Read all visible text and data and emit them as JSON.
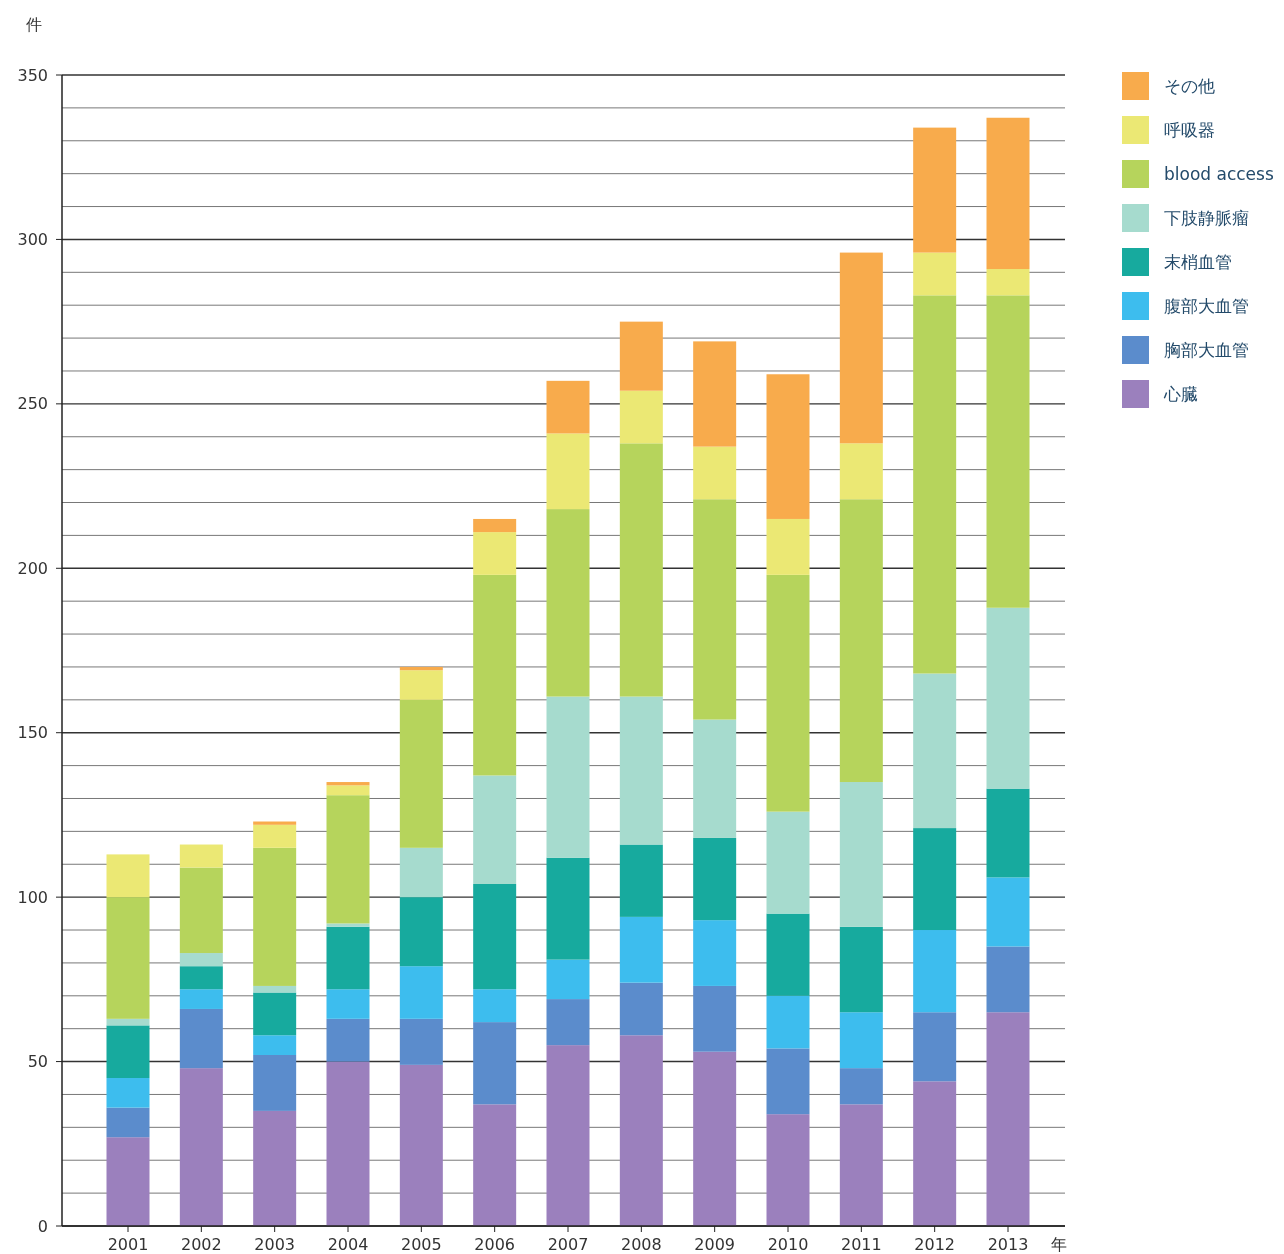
{
  "chart_data": {
    "type": "bar",
    "stacked": true,
    "xlabel": "年",
    "ylabel": "件",
    "categories": [
      "2001",
      "2002",
      "2003",
      "2004",
      "2005",
      "2006",
      "2007",
      "2008",
      "2009",
      "2010",
      "2011",
      "2012",
      "2013"
    ],
    "series": [
      {
        "name": "心臓",
        "color": "#9b80bd",
        "values": [
          27,
          48,
          35,
          50,
          49,
          37,
          55,
          58,
          53,
          34,
          37,
          44,
          65
        ]
      },
      {
        "name": "胸部大血管",
        "color": "#5b8ccc",
        "values": [
          9,
          18,
          17,
          13,
          14,
          25,
          14,
          16,
          20,
          20,
          11,
          21,
          20
        ]
      },
      {
        "name": "腹部大血管",
        "color": "#3dbdee",
        "values": [
          9,
          6,
          6,
          9,
          16,
          10,
          12,
          20,
          20,
          16,
          17,
          25,
          21
        ]
      },
      {
        "name": "末梢血管",
        "color": "#17aa9e",
        "values": [
          16,
          7,
          13,
          19,
          21,
          32,
          31,
          22,
          25,
          25,
          26,
          31,
          27
        ]
      },
      {
        "name": "下肢静脈瘤",
        "color": "#a6dbce",
        "values": [
          2,
          4,
          2,
          1,
          15,
          33,
          49,
          45,
          36,
          31,
          44,
          47,
          55
        ]
      },
      {
        "name": "blood access",
        "color": "#b6d45c",
        "values": [
          37,
          26,
          42,
          39,
          45,
          61,
          57,
          77,
          67,
          72,
          86,
          115,
          95
        ]
      },
      {
        "name": "呼吸器",
        "color": "#ebe874",
        "values": [
          13,
          7,
          7,
          3,
          9,
          13,
          23,
          16,
          16,
          17,
          17,
          13,
          8
        ]
      },
      {
        "name": "その他",
        "color": "#f8ab4c",
        "values": [
          0,
          0,
          1,
          1,
          1,
          4,
          16,
          21,
          32,
          44,
          58,
          38,
          46
        ]
      }
    ],
    "ylim": [
      0,
      350
    ],
    "yticks": [
      0,
      {
        "value": 10,
        "label": null
      },
      {
        "value": 20,
        "label": null
      },
      {
        "value": 30,
        "label": null
      },
      {
        "value": 40,
        "label": null
      },
      50,
      {
        "value": 60,
        "label": null
      },
      {
        "value": 70,
        "label": null
      },
      {
        "value": 80,
        "label": null
      },
      {
        "value": 90,
        "label": null
      },
      100,
      {
        "value": 110,
        "label": null
      },
      {
        "value": 120,
        "label": null
      },
      {
        "value": 130,
        "label": null
      },
      {
        "value": 140,
        "label": null
      },
      150,
      {
        "value": 160,
        "label": null
      },
      {
        "value": 170,
        "label": null
      },
      {
        "value": 180,
        "label": null
      },
      {
        "value": 190,
        "label": null
      },
      200,
      {
        "value": 210,
        "label": null
      },
      {
        "value": 220,
        "label": null
      },
      {
        "value": 230,
        "label": null
      },
      {
        "value": 240,
        "label": null
      },
      250,
      {
        "value": 260,
        "label": null
      },
      {
        "value": 270,
        "label": null
      },
      {
        "value": 280,
        "label": null
      },
      {
        "value": 290,
        "label": null
      },
      300,
      {
        "value": 310,
        "label": null
      },
      {
        "value": 320,
        "label": null
      },
      {
        "value": 330,
        "label": null
      },
      {
        "value": 340,
        "label": null
      },
      350
    ],
    "grid": "y",
    "legend": "top right"
  }
}
